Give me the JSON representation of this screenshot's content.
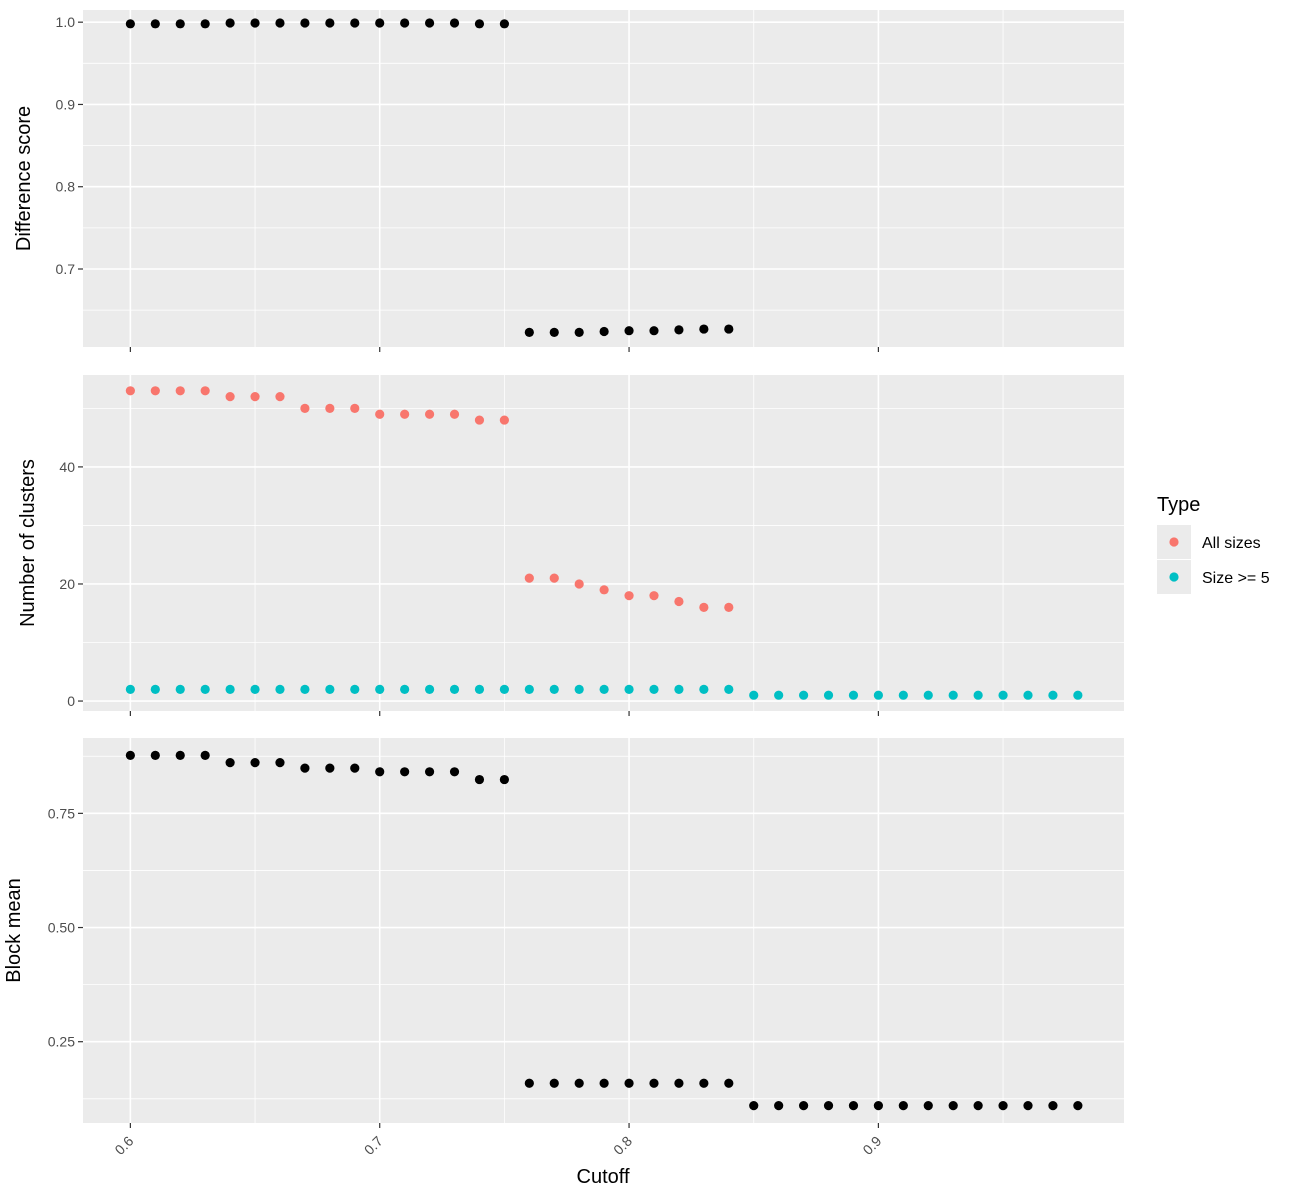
{
  "chart_data": {
    "type": "scatter",
    "xlabel": "Cutoff",
    "x_ticks": [
      "0.6",
      "0.7",
      "0.8",
      "0.9"
    ],
    "x_tick_values": [
      0.6,
      0.7,
      0.8,
      0.9
    ],
    "xlim": [
      0.581,
      0.9985
    ],
    "grid": true,
    "background_color": "#EBEBEB",
    "point_color_default": "#000000",
    "legend": {
      "title": "Type",
      "position": "right",
      "entries": [
        {
          "label": "All sizes",
          "color": "#F8766D"
        },
        {
          "label": "Size >= 5",
          "color": "#00BFC4"
        }
      ]
    },
    "panels": [
      {
        "ylabel": "Difference score",
        "ylim": [
          0.6052,
          1.0148
        ],
        "y_ticks": [
          "0.7",
          "0.8",
          "0.9",
          "1.0"
        ],
        "y_tick_values": [
          0.7,
          0.8,
          0.9,
          1.0
        ],
        "series": [
          {
            "color": "#000000",
            "x": [
              0.6,
              0.61,
              0.62,
              0.63,
              0.64,
              0.65,
              0.66,
              0.67,
              0.68,
              0.69,
              0.7,
              0.71,
              0.72,
              0.73,
              0.74,
              0.75,
              0.76,
              0.77,
              0.78,
              0.79,
              0.8,
              0.81,
              0.82,
              0.83,
              0.84
            ],
            "y": [
              0.998,
              0.998,
              0.998,
              0.998,
              0.999,
              0.999,
              0.999,
              0.999,
              0.999,
              0.999,
              0.999,
              0.999,
              0.999,
              0.999,
              0.998,
              0.998,
              0.623,
              0.623,
              0.623,
              0.624,
              0.625,
              0.625,
              0.626,
              0.627,
              0.627
            ]
          }
        ]
      },
      {
        "ylabel": "Number of clusters",
        "ylim": [
          -1.7,
          55.7
        ],
        "y_ticks": [
          "0",
          "20",
          "40"
        ],
        "y_tick_values": [
          0,
          20,
          40
        ],
        "series": [
          {
            "name": "All sizes",
            "color": "#F8766D",
            "x": [
              0.6,
              0.61,
              0.62,
              0.63,
              0.64,
              0.65,
              0.66,
              0.67,
              0.68,
              0.69,
              0.7,
              0.71,
              0.72,
              0.73,
              0.74,
              0.75,
              0.76,
              0.77,
              0.78,
              0.79,
              0.8,
              0.81,
              0.82,
              0.83,
              0.84
            ],
            "y": [
              53,
              53,
              53,
              53,
              52,
              52,
              52,
              50,
              50,
              50,
              49,
              49,
              49,
              49,
              48,
              48,
              21,
              21,
              20,
              19,
              18,
              18,
              17,
              16,
              16
            ]
          },
          {
            "name": "Size >= 5",
            "color": "#00BFC4",
            "x": [
              0.6,
              0.61,
              0.62,
              0.63,
              0.64,
              0.65,
              0.66,
              0.67,
              0.68,
              0.69,
              0.7,
              0.71,
              0.72,
              0.73,
              0.74,
              0.75,
              0.76,
              0.77,
              0.78,
              0.79,
              0.8,
              0.81,
              0.82,
              0.83,
              0.84,
              0.85,
              0.86,
              0.87,
              0.88,
              0.89,
              0.9,
              0.91,
              0.92,
              0.93,
              0.94,
              0.95,
              0.96,
              0.97,
              0.98
            ],
            "y": [
              2,
              2,
              2,
              2,
              2,
              2,
              2,
              2,
              2,
              2,
              2,
              2,
              2,
              2,
              2,
              2,
              2,
              2,
              2,
              2,
              2,
              2,
              2,
              2,
              2,
              1,
              1,
              1,
              1,
              1,
              1,
              1,
              1,
              1,
              1,
              1,
              1,
              1,
              1
            ]
          }
        ]
      },
      {
        "ylabel": "Block mean",
        "ylim": [
          0.072,
          0.915
        ],
        "y_ticks": [
          "0.25",
          "0.50",
          "0.75"
        ],
        "y_tick_values": [
          0.25,
          0.5,
          0.75
        ],
        "series": [
          {
            "color": "#000000",
            "x": [
              0.6,
              0.61,
              0.62,
              0.63,
              0.64,
              0.65,
              0.66,
              0.67,
              0.68,
              0.69,
              0.7,
              0.71,
              0.72,
              0.73,
              0.74,
              0.75,
              0.76,
              0.77,
              0.78,
              0.79,
              0.8,
              0.81,
              0.82,
              0.83,
              0.84,
              0.85,
              0.86,
              0.87,
              0.88,
              0.89,
              0.9,
              0.91,
              0.92,
              0.93,
              0.94,
              0.95,
              0.96,
              0.97,
              0.98
            ],
            "y": [
              0.877,
              0.877,
              0.877,
              0.877,
              0.861,
              0.861,
              0.861,
              0.849,
              0.849,
              0.849,
              0.841,
              0.841,
              0.841,
              0.841,
              0.824,
              0.824,
              0.159,
              0.159,
              0.159,
              0.159,
              0.159,
              0.159,
              0.159,
              0.159,
              0.159,
              0.11,
              0.11,
              0.11,
              0.11,
              0.11,
              0.11,
              0.11,
              0.11,
              0.11,
              0.11,
              0.11,
              0.11,
              0.11,
              0.11
            ]
          }
        ]
      }
    ]
  }
}
